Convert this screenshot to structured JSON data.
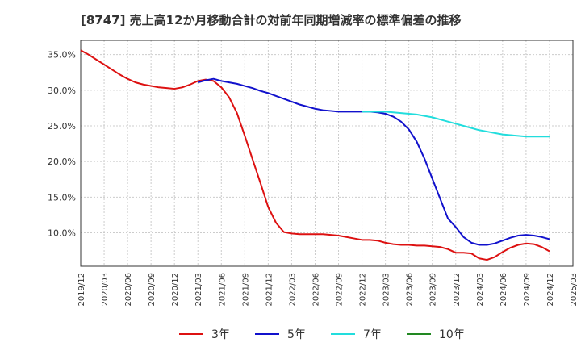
{
  "title": "[8747]  売上高12か月移動合計の対前年同期増減率の標準偏差の推移",
  "chart_data": {
    "type": "line",
    "x_ticks": [
      "2019/12",
      "2020/03",
      "2020/06",
      "2020/09",
      "2020/12",
      "2021/03",
      "2021/06",
      "2021/09",
      "2021/12",
      "2022/03",
      "2022/06",
      "2022/09",
      "2022/12",
      "2023/03",
      "2023/06",
      "2023/09",
      "2023/12",
      "2024/03",
      "2024/06",
      "2024/09",
      "2024/12",
      "2025/03"
    ],
    "y_ticks": [
      "10.0%",
      "15.0%",
      "20.0%",
      "25.0%",
      "30.0%",
      "35.0%"
    ],
    "y_tick_values": [
      10,
      15,
      20,
      25,
      30,
      35
    ],
    "ylim": [
      5.3,
      37.0
    ],
    "grid": true,
    "legend_position": "bottom",
    "series": [
      {
        "name": "3年",
        "color": "#dd1111",
        "x": [
          "2019/12",
          "2020/01",
          "2020/02",
          "2020/03",
          "2020/04",
          "2020/05",
          "2020/06",
          "2020/07",
          "2020/08",
          "2020/09",
          "2020/10",
          "2020/11",
          "2020/12",
          "2021/01",
          "2021/02",
          "2021/03",
          "2021/04",
          "2021/05",
          "2021/06",
          "2021/07",
          "2021/08",
          "2021/09",
          "2021/10",
          "2021/11",
          "2021/12",
          "2022/01",
          "2022/02",
          "2022/03",
          "2022/04",
          "2022/05",
          "2022/06",
          "2022/07",
          "2022/08",
          "2022/09",
          "2022/10",
          "2022/11",
          "2022/12",
          "2023/01",
          "2023/02",
          "2023/03",
          "2023/04",
          "2023/05",
          "2023/06",
          "2023/07",
          "2023/08",
          "2023/09",
          "2023/10",
          "2023/11",
          "2023/12",
          "2024/01",
          "2024/02",
          "2024/03",
          "2024/04",
          "2024/05",
          "2024/06",
          "2024/07",
          "2024/08",
          "2024/09",
          "2024/10",
          "2024/11",
          "2024/12"
        ],
        "values": [
          35.6,
          35.0,
          34.3,
          33.6,
          32.9,
          32.2,
          31.6,
          31.1,
          30.8,
          30.6,
          30.4,
          30.3,
          30.2,
          30.4,
          30.8,
          31.3,
          31.5,
          31.3,
          30.4,
          29.0,
          26.8,
          23.6,
          20.3,
          17.0,
          13.6,
          11.4,
          10.1,
          9.9,
          9.8,
          9.8,
          9.8,
          9.8,
          9.7,
          9.6,
          9.4,
          9.2,
          9.0,
          9.0,
          8.9,
          8.6,
          8.4,
          8.3,
          8.3,
          8.2,
          8.2,
          8.1,
          8.0,
          7.7,
          7.2,
          7.2,
          7.1,
          6.4,
          6.2,
          6.6,
          7.3,
          7.9,
          8.3,
          8.5,
          8.4,
          8.0,
          7.4
        ]
      },
      {
        "name": "5年",
        "color": "#1111cc",
        "x": [
          "2021/03",
          "2021/04",
          "2021/05",
          "2021/06",
          "2021/07",
          "2021/08",
          "2021/09",
          "2021/10",
          "2021/11",
          "2021/12",
          "2022/01",
          "2022/02",
          "2022/03",
          "2022/04",
          "2022/05",
          "2022/06",
          "2022/07",
          "2022/08",
          "2022/09",
          "2022/10",
          "2022/11",
          "2022/12",
          "2023/01",
          "2023/02",
          "2023/03",
          "2023/04",
          "2023/05",
          "2023/06",
          "2023/07",
          "2023/08",
          "2023/09",
          "2023/10",
          "2023/11",
          "2023/12",
          "2024/01",
          "2024/02",
          "2024/03",
          "2024/04",
          "2024/05",
          "2024/06",
          "2024/07",
          "2024/08",
          "2024/09",
          "2024/10",
          "2024/11",
          "2024/12"
        ],
        "values": [
          31.1,
          31.4,
          31.6,
          31.3,
          31.1,
          30.9,
          30.6,
          30.3,
          29.9,
          29.6,
          29.2,
          28.8,
          28.4,
          28.0,
          27.7,
          27.4,
          27.2,
          27.1,
          27.0,
          27.0,
          27.0,
          27.0,
          27.0,
          26.9,
          26.7,
          26.3,
          25.6,
          24.5,
          22.8,
          20.4,
          17.6,
          14.8,
          12.0,
          10.8,
          9.4,
          8.6,
          8.3,
          8.3,
          8.5,
          8.9,
          9.3,
          9.6,
          9.7,
          9.6,
          9.4,
          9.1
        ]
      },
      {
        "name": "7年",
        "color": "#22dddd",
        "x": [
          "2022/12",
          "2023/01",
          "2023/02",
          "2023/03",
          "2023/04",
          "2023/05",
          "2023/06",
          "2023/07",
          "2023/08",
          "2023/09",
          "2023/10",
          "2023/11",
          "2023/12",
          "2024/01",
          "2024/02",
          "2024/03",
          "2024/04",
          "2024/05",
          "2024/06",
          "2024/07",
          "2024/08",
          "2024/09",
          "2024/10",
          "2024/11",
          "2024/12"
        ],
        "values": [
          27.0,
          27.0,
          27.0,
          27.0,
          26.9,
          26.8,
          26.7,
          26.6,
          26.4,
          26.2,
          25.9,
          25.6,
          25.3,
          25.0,
          24.7,
          24.4,
          24.2,
          24.0,
          23.8,
          23.7,
          23.6,
          23.5,
          23.5,
          23.5,
          23.5
        ]
      },
      {
        "name": "10年",
        "color": "#228822",
        "x": [],
        "values": []
      }
    ]
  }
}
